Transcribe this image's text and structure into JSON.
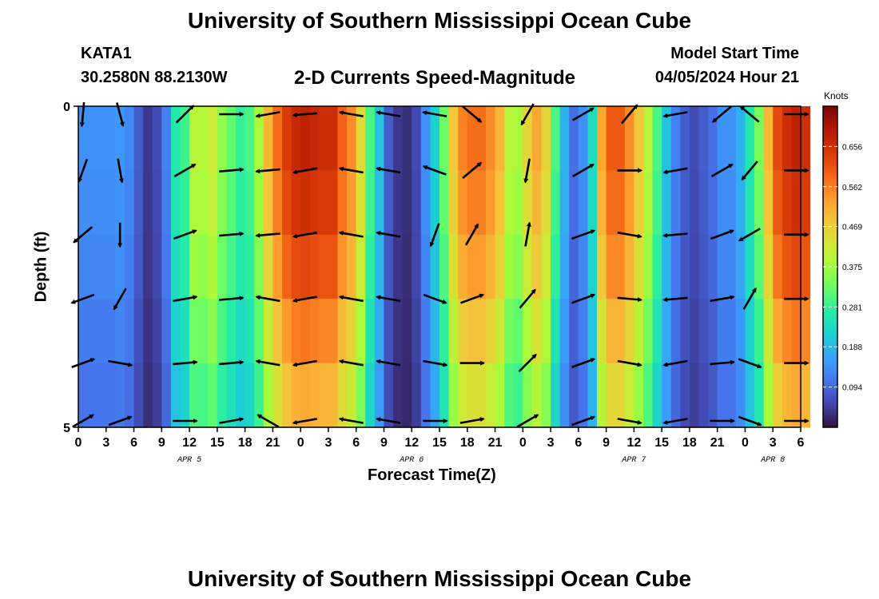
{
  "header": {
    "title": "University of Southern Mississippi Ocean Cube",
    "station": "KATA1",
    "coords": "30.2580N  88.2130W",
    "subtitle": "2-D Currents Speed-Magnitude",
    "model_start_label": "Model Start Time",
    "model_start_value": "04/05/2024 Hour 21"
  },
  "footer": {
    "title": "University of Southern Mississippi Ocean Cube"
  },
  "chart_data": {
    "type": "heatmap",
    "xlabel": "Forecast Time(Z)",
    "ylabel": "Depth (ft)",
    "x_tick_labels": [
      "0",
      "3",
      "6",
      "9",
      "12",
      "15",
      "18",
      "21",
      "0",
      "3",
      "6",
      "9",
      "12",
      "15",
      "18",
      "21",
      "0",
      "3",
      "6",
      "9",
      "12",
      "15",
      "18",
      "21",
      "0",
      "3",
      "6"
    ],
    "date_labels": [
      {
        "label": "APR 5",
        "hour": 12
      },
      {
        "label": "APR 6",
        "hour": 36
      },
      {
        "label": "APR 7",
        "hour": 60
      },
      {
        "label": "APR 8",
        "hour": 75
      }
    ],
    "x_range_hours": [
      0,
      78
    ],
    "y_ticks": [
      "0",
      "5"
    ],
    "y_range_ft": [
      0,
      5
    ],
    "depth_rows": 5,
    "colorbar": {
      "unit": "Knots",
      "ticks": [
        "0.656",
        "0.562",
        "0.469",
        "0.375",
        "0.281",
        "0.188",
        "0.094"
      ],
      "tick_values": [
        0.656,
        0.562,
        0.469,
        0.375,
        0.281,
        0.188,
        0.094
      ],
      "range": [
        0.0,
        0.75
      ],
      "colormap": [
        "#30123b",
        "#4145ab",
        "#4675ed",
        "#39a2fc",
        "#1bcfd4",
        "#24eca6",
        "#61fc6c",
        "#a4fc3b",
        "#d1e834",
        "#f3c63a",
        "#fe9b2d",
        "#f36315",
        "#d93807",
        "#b11901",
        "#7a0403"
      ]
    },
    "speed_by_hour": [
      0.14,
      0.14,
      0.14,
      0.14,
      0.15,
      0.13,
      0.08,
      0.04,
      0.06,
      0.12,
      0.26,
      0.29,
      0.4,
      0.39,
      0.42,
      0.36,
      0.32,
      0.28,
      0.3,
      0.38,
      0.5,
      0.58,
      0.64,
      0.67,
      0.68,
      0.67,
      0.66,
      0.66,
      0.59,
      0.55,
      0.45,
      0.3,
      0.2,
      0.08,
      0.04,
      0.03,
      0.06,
      0.14,
      0.22,
      0.33,
      0.48,
      0.56,
      0.58,
      0.58,
      0.55,
      0.5,
      0.4,
      0.38,
      0.46,
      0.52,
      0.46,
      0.3,
      0.18,
      0.1,
      0.14,
      0.24,
      0.52,
      0.6,
      0.6,
      0.55,
      0.48,
      0.4,
      0.3,
      0.2,
      0.12,
      0.08,
      0.06,
      0.08,
      0.1,
      0.14,
      0.14,
      0.18,
      0.26,
      0.34,
      0.5,
      0.62,
      0.66,
      0.68,
      0.66
    ],
    "depth_factor": [
      1.0,
      0.97,
      0.92,
      0.84,
      0.76
    ],
    "vectors": [
      {
        "hour": 0,
        "angles": [
          -95,
          -110,
          -140,
          -160,
          20,
          30
        ]
      },
      {
        "hour": 4,
        "angles": [
          -75,
          -80,
          -90,
          -120,
          -10,
          20
        ]
      },
      {
        "hour": 11,
        "angles": [
          45,
          30,
          20,
          10,
          5,
          0
        ]
      },
      {
        "hour": 16,
        "angles": [
          0,
          5,
          5,
          5,
          5,
          10
        ]
      },
      {
        "hour": 20,
        "angles": [
          -170,
          -175,
          -175,
          170,
          170,
          150
        ]
      },
      {
        "hour": 24,
        "angles": [
          -175,
          -170,
          -170,
          -170,
          -170,
          -170
        ]
      },
      {
        "hour": 29,
        "angles": [
          170,
          170,
          170,
          170,
          170,
          170
        ]
      },
      {
        "hour": 33,
        "angles": [
          170,
          170,
          170,
          170,
          170,
          170
        ]
      },
      {
        "hour": 38,
        "angles": [
          170,
          160,
          -110,
          -20,
          -10,
          0
        ]
      },
      {
        "hour": 42,
        "angles": [
          -40,
          40,
          60,
          20,
          0,
          10
        ]
      },
      {
        "hour": 48,
        "angles": [
          -120,
          -100,
          80,
          50,
          45,
          30
        ]
      },
      {
        "hour": 54,
        "angles": [
          30,
          30,
          20,
          20,
          20,
          20
        ]
      },
      {
        "hour": 59,
        "angles": [
          50,
          0,
          -10,
          -5,
          -10,
          -10
        ]
      },
      {
        "hour": 64,
        "angles": [
          -170,
          -170,
          -175,
          -175,
          -170,
          -170
        ]
      },
      {
        "hour": 69,
        "angles": [
          -140,
          30,
          20,
          10,
          5,
          0
        ]
      },
      {
        "hour": 72,
        "angles": [
          140,
          -130,
          -150,
          60,
          -20,
          -20
        ]
      },
      {
        "hour": 77,
        "angles": [
          0,
          0,
          0,
          0,
          0,
          0
        ]
      }
    ]
  }
}
